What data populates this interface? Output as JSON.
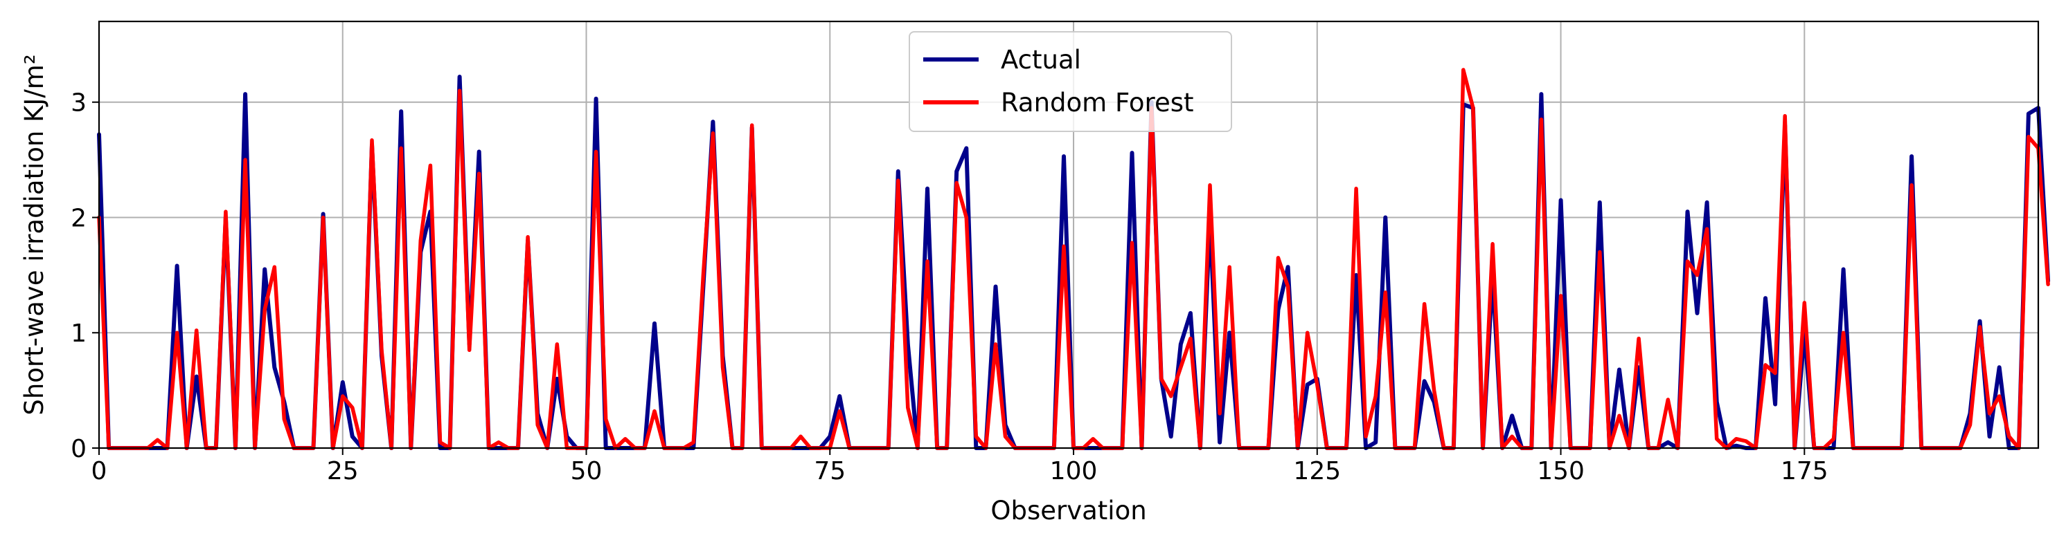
{
  "chart_data": {
    "type": "line",
    "xlabel": "Observation",
    "ylabel": "Short-wave irradiation KJ/m²",
    "xlim": [
      0,
      199
    ],
    "ylim": [
      0,
      3.7
    ],
    "xticks": [
      0,
      25,
      50,
      75,
      100,
      125,
      150,
      175
    ],
    "yticks": [
      0,
      1,
      2,
      3
    ],
    "grid": true,
    "legend_position": "top-center",
    "series": [
      {
        "name": "Actual",
        "color": "#00008b",
        "values": [
          2.72,
          0,
          0,
          0,
          0,
          0,
          0,
          0,
          1.58,
          0,
          0.62,
          0,
          0,
          2.0,
          0,
          3.07,
          0,
          1.55,
          0.7,
          0.4,
          0,
          0,
          0,
          2.03,
          0,
          0.57,
          0.1,
          0,
          2.63,
          0.8,
          0,
          2.92,
          0,
          1.7,
          2.05,
          0,
          0,
          3.22,
          0.9,
          2.57,
          0,
          0,
          0,
          0,
          1.8,
          0.3,
          0,
          0.6,
          0.1,
          0,
          0,
          3.03,
          0,
          0,
          0,
          0,
          0,
          1.08,
          0,
          0,
          0,
          0,
          1.4,
          2.83,
          0.8,
          0,
          0,
          2.78,
          0,
          0,
          0,
          0,
          0,
          0,
          0,
          0.1,
          0.45,
          0,
          0,
          0,
          0,
          0,
          2.4,
          0.9,
          0,
          2.25,
          0,
          0,
          2.4,
          2.6,
          0,
          0,
          1.4,
          0.2,
          0,
          0,
          0,
          0,
          0,
          2.53,
          0,
          0,
          0,
          0,
          0,
          0,
          2.56,
          0,
          3.0,
          0.6,
          0.1,
          0.9,
          1.17,
          0,
          2.0,
          0.05,
          1.0,
          0,
          0,
          0,
          0,
          1.2,
          1.57,
          0,
          0.55,
          0.6,
          0,
          0,
          0,
          1.5,
          0,
          0.05,
          2.0,
          0,
          0,
          0,
          0.58,
          0.4,
          0,
          0,
          2.98,
          2.95,
          0,
          1.5,
          0,
          0.28,
          0,
          0,
          3.07,
          0,
          2.15,
          0,
          0,
          0,
          2.13,
          0,
          0.68,
          0,
          0.7,
          0,
          0,
          0.05,
          0,
          2.05,
          1.17,
          2.13,
          0.4,
          0,
          0.02,
          0,
          0,
          1.3,
          0.38,
          2.8,
          0,
          1.0,
          0,
          0,
          0,
          1.55,
          0,
          0,
          0,
          0,
          0,
          0,
          2.53,
          0,
          0,
          0,
          0,
          0,
          0.3,
          1.1,
          0.1,
          0.7,
          0,
          0,
          2.9,
          2.95,
          1.45
        ]
      },
      {
        "name": "Random Forest",
        "color": "#ff0000",
        "values": [
          2.0,
          0,
          0,
          0,
          0,
          0,
          0.07,
          0,
          1.0,
          0,
          1.02,
          0,
          0,
          2.05,
          0,
          2.5,
          0,
          1.2,
          1.57,
          0.25,
          0,
          0,
          0,
          2.0,
          0,
          0.45,
          0.35,
          0,
          2.67,
          0.85,
          0,
          2.6,
          0,
          1.8,
          2.45,
          0.05,
          0,
          3.1,
          0.85,
          2.38,
          0,
          0.05,
          0,
          0,
          1.83,
          0.2,
          0,
          0.9,
          0,
          0,
          0,
          2.57,
          0.25,
          0,
          0.08,
          0,
          0,
          0.32,
          0,
          0,
          0,
          0.05,
          1.5,
          2.73,
          0.7,
          0,
          0,
          2.8,
          0,
          0,
          0,
          0,
          0.1,
          0,
          0,
          0,
          0.32,
          0,
          0,
          0,
          0,
          0,
          2.32,
          0.35,
          0,
          1.62,
          0,
          0,
          2.3,
          2.0,
          0.1,
          0,
          0.9,
          0.1,
          0,
          0,
          0,
          0,
          0,
          1.75,
          0,
          0,
          0.08,
          0,
          0,
          0,
          1.78,
          0,
          2.95,
          0.6,
          0.45,
          0.7,
          0.95,
          0,
          2.28,
          0.3,
          1.57,
          0,
          0,
          0,
          0,
          1.65,
          1.4,
          0,
          1.0,
          0.55,
          0,
          0,
          0,
          2.25,
          0.1,
          0.45,
          1.35,
          0,
          0,
          0,
          1.25,
          0.5,
          0,
          0,
          3.28,
          2.95,
          0,
          1.77,
          0,
          0.1,
          0,
          0,
          2.85,
          0,
          1.32,
          0,
          0,
          0,
          1.7,
          0,
          0.28,
          0,
          0.95,
          0,
          0,
          0.42,
          0,
          1.62,
          1.5,
          1.9,
          0.08,
          0,
          0.08,
          0.06,
          0,
          0.72,
          0.65,
          2.88,
          0,
          1.26,
          0,
          0,
          0.08,
          1.0,
          0,
          0,
          0,
          0,
          0,
          0,
          2.28,
          0,
          0,
          0,
          0,
          0,
          0.2,
          1.05,
          0.3,
          0.45,
          0.1,
          0,
          2.7,
          2.6,
          1.42
        ]
      }
    ]
  }
}
